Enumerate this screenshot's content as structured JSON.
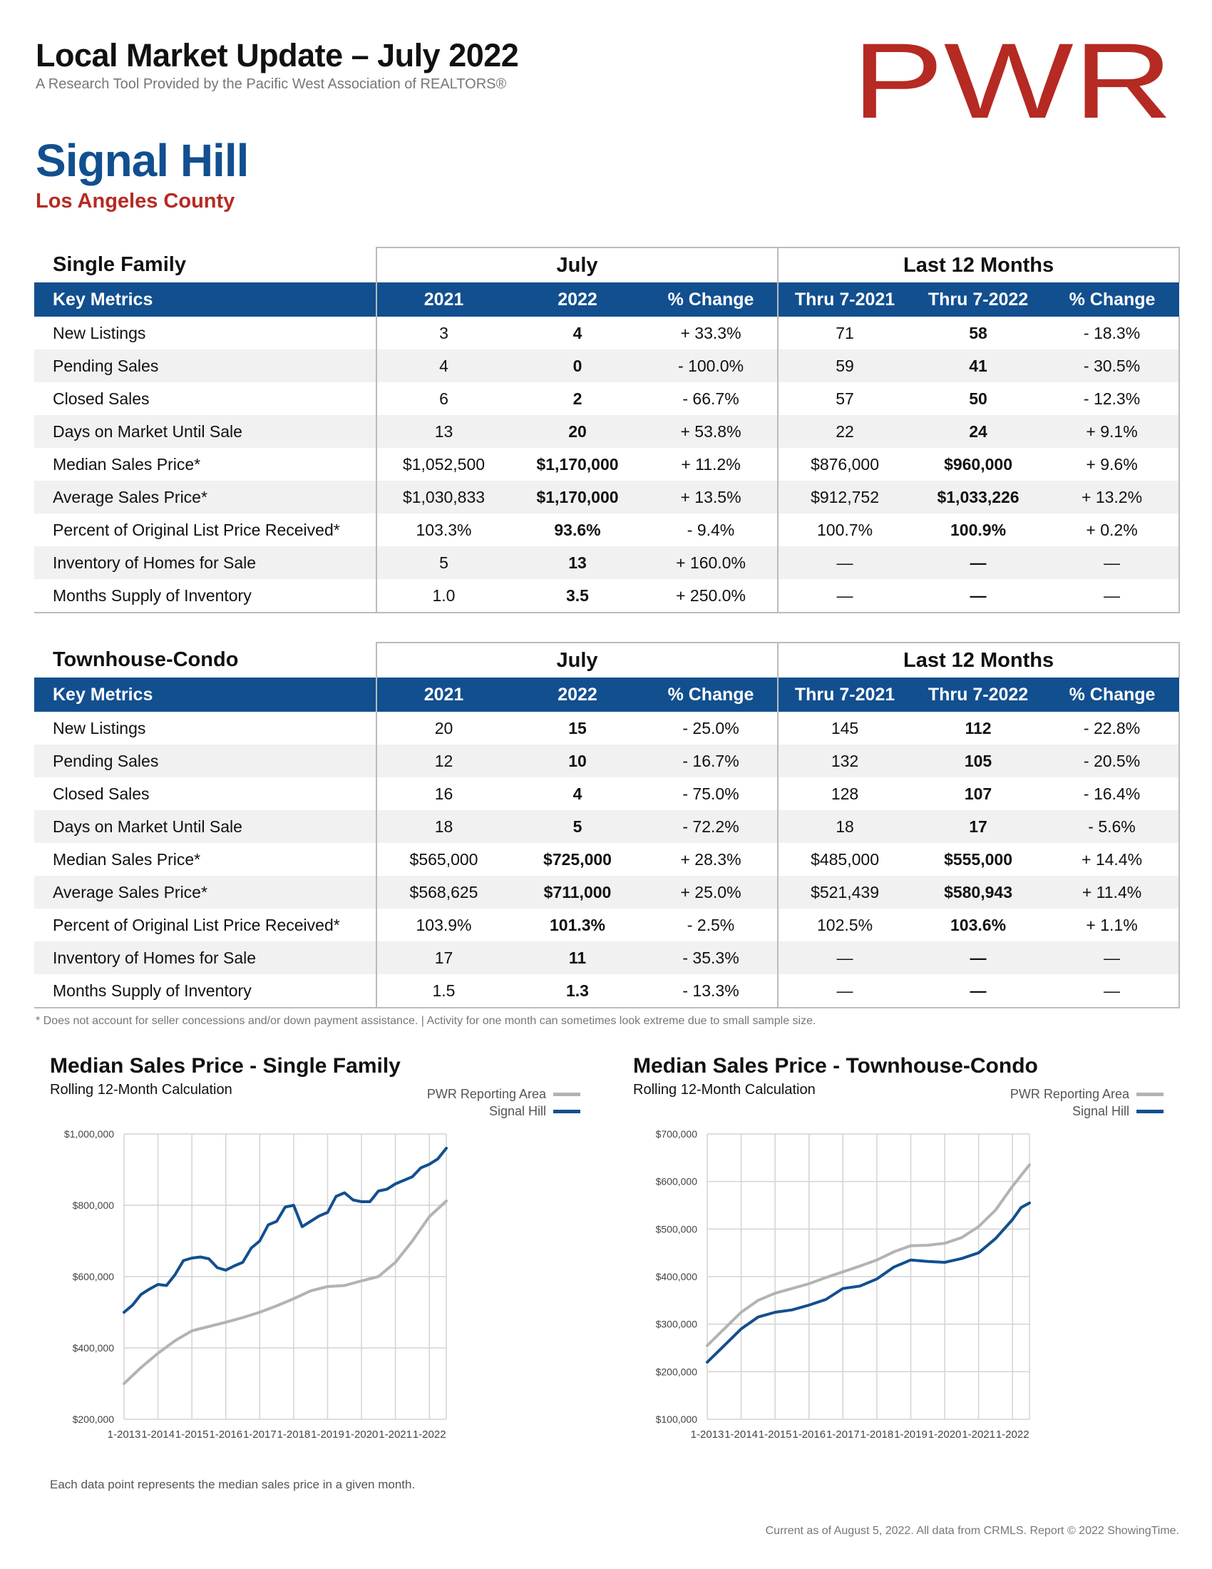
{
  "header": {
    "title": "Local Market Update – July 2022",
    "subtitle": "A Research Tool Provided by the Pacific West Association of REALTORS®",
    "logo_text": "PWR",
    "area": "Signal Hill",
    "county": "Los Angeles County"
  },
  "columns": {
    "key_metrics": "Key Metrics",
    "month_group": "July",
    "ytd_group": "Last 12 Months",
    "y1": "2021",
    "y2": "2022",
    "change": "% Change",
    "t1": "Thru 7-2021",
    "t2": "Thru 7-2022"
  },
  "tables": [
    {
      "name": "Single Family",
      "rows": [
        [
          "New Listings",
          "3",
          "4",
          "+ 33.3%",
          "71",
          "58",
          "- 18.3%"
        ],
        [
          "Pending Sales",
          "4",
          "0",
          "- 100.0%",
          "59",
          "41",
          "- 30.5%"
        ],
        [
          "Closed Sales",
          "6",
          "2",
          "- 66.7%",
          "57",
          "50",
          "- 12.3%"
        ],
        [
          "Days on Market Until Sale",
          "13",
          "20",
          "+ 53.8%",
          "22",
          "24",
          "+ 9.1%"
        ],
        [
          "Median Sales Price*",
          "$1,052,500",
          "$1,170,000",
          "+ 11.2%",
          "$876,000",
          "$960,000",
          "+ 9.6%"
        ],
        [
          "Average Sales Price*",
          "$1,030,833",
          "$1,170,000",
          "+ 13.5%",
          "$912,752",
          "$1,033,226",
          "+ 13.2%"
        ],
        [
          "Percent of Original List Price Received*",
          "103.3%",
          "93.6%",
          "- 9.4%",
          "100.7%",
          "100.9%",
          "+ 0.2%"
        ],
        [
          "Inventory of Homes for Sale",
          "5",
          "13",
          "+ 160.0%",
          "—",
          "—",
          "—"
        ],
        [
          "Months Supply of Inventory",
          "1.0",
          "3.5",
          "+ 250.0%",
          "—",
          "—",
          "—"
        ]
      ]
    },
    {
      "name": "Townhouse-Condo",
      "rows": [
        [
          "New Listings",
          "20",
          "15",
          "- 25.0%",
          "145",
          "112",
          "- 22.8%"
        ],
        [
          "Pending Sales",
          "12",
          "10",
          "- 16.7%",
          "132",
          "105",
          "- 20.5%"
        ],
        [
          "Closed Sales",
          "16",
          "4",
          "- 75.0%",
          "128",
          "107",
          "- 16.4%"
        ],
        [
          "Days on Market Until Sale",
          "18",
          "5",
          "- 72.2%",
          "18",
          "17",
          "- 5.6%"
        ],
        [
          "Median Sales Price*",
          "$565,000",
          "$725,000",
          "+ 28.3%",
          "$485,000",
          "$555,000",
          "+ 14.4%"
        ],
        [
          "Average Sales Price*",
          "$568,625",
          "$711,000",
          "+ 25.0%",
          "$521,439",
          "$580,943",
          "+ 11.4%"
        ],
        [
          "Percent of Original List Price Received*",
          "103.9%",
          "101.3%",
          "- 2.5%",
          "102.5%",
          "103.6%",
          "+ 1.1%"
        ],
        [
          "Inventory of Homes for Sale",
          "17",
          "11",
          "- 35.3%",
          "—",
          "—",
          "—"
        ],
        [
          "Months Supply of Inventory",
          "1.5",
          "1.3",
          "- 13.3%",
          "—",
          "—",
          "—"
        ]
      ]
    }
  ],
  "footnote": "* Does not account for seller concessions and/or down payment assistance. | Activity for one month can sometimes look extreme due to small sample size.",
  "chart_note": "Each data point represents the median sales price in a given month.",
  "footer": "Current as of August 5, 2022. All data from CRMLS. Report © 2022 ShowingTime.",
  "colors": {
    "brand_blue": "#124f8f",
    "brand_red": "#b52a22",
    "reporting_area_gray": "#b3b3b3"
  },
  "chart_data": [
    {
      "type": "line",
      "title": "Median Sales Price - Single Family",
      "subtitle": "Rolling 12-Month Calculation",
      "xlabel": "",
      "ylabel": "",
      "x_ticks": [
        "1-2013",
        "1-2014",
        "1-2015",
        "1-2016",
        "1-2017",
        "1-2018",
        "1-2019",
        "1-2020",
        "1-2021",
        "1-2022"
      ],
      "y_ticks": [
        "$1,000,000",
        "$800,000",
        "$600,000",
        "$400,000",
        "$200,000"
      ],
      "ylim": [
        200000,
        1000000
      ],
      "x_range": [
        "1-2013",
        "7-2022"
      ],
      "grid": true,
      "legend_position": "top-right",
      "series": [
        {
          "name": "PWR Reporting Area",
          "color": "#b3b3b3",
          "points": [
            [
              "1-2013",
              300000
            ],
            [
              "7-2013",
              345000
            ],
            [
              "1-2014",
              385000
            ],
            [
              "7-2014",
              420000
            ],
            [
              "1-2015",
              448000
            ],
            [
              "7-2015",
              460000
            ],
            [
              "1-2016",
              472000
            ],
            [
              "7-2016",
              485000
            ],
            [
              "1-2017",
              500000
            ],
            [
              "7-2017",
              518000
            ],
            [
              "1-2018",
              538000
            ],
            [
              "7-2018",
              560000
            ],
            [
              "1-2019",
              572000
            ],
            [
              "7-2019",
              575000
            ],
            [
              "1-2020",
              588000
            ],
            [
              "7-2020",
              600000
            ],
            [
              "1-2021",
              640000
            ],
            [
              "7-2021",
              700000
            ],
            [
              "1-2022",
              768000
            ],
            [
              "7-2022",
              812000
            ]
          ]
        },
        {
          "name": "Signal Hill",
          "color": "#124f8f",
          "points": [
            [
              "1-2013",
              500000
            ],
            [
              "4-2013",
              520000
            ],
            [
              "7-2013",
              550000
            ],
            [
              "10-2013",
              565000
            ],
            [
              "1-2014",
              578000
            ],
            [
              "4-2014",
              575000
            ],
            [
              "7-2014",
              605000
            ],
            [
              "10-2014",
              645000
            ],
            [
              "1-2015",
              652000
            ],
            [
              "4-2015",
              655000
            ],
            [
              "7-2015",
              650000
            ],
            [
              "10-2015",
              625000
            ],
            [
              "1-2016",
              618000
            ],
            [
              "4-2016",
              630000
            ],
            [
              "7-2016",
              640000
            ],
            [
              "10-2016",
              680000
            ],
            [
              "1-2017",
              700000
            ],
            [
              "4-2017",
              745000
            ],
            [
              "7-2017",
              755000
            ],
            [
              "10-2017",
              795000
            ],
            [
              "1-2018",
              800000
            ],
            [
              "4-2018",
              740000
            ],
            [
              "7-2018",
              755000
            ],
            [
              "10-2018",
              770000
            ],
            [
              "1-2019",
              780000
            ],
            [
              "4-2019",
              825000
            ],
            [
              "7-2019",
              835000
            ],
            [
              "10-2019",
              815000
            ],
            [
              "1-2020",
              810000
            ],
            [
              "4-2020",
              810000
            ],
            [
              "7-2020",
              840000
            ],
            [
              "10-2020",
              845000
            ],
            [
              "1-2021",
              860000
            ],
            [
              "4-2021",
              870000
            ],
            [
              "7-2021",
              880000
            ],
            [
              "10-2021",
              905000
            ],
            [
              "1-2022",
              915000
            ],
            [
              "4-2022",
              930000
            ],
            [
              "7-2022",
              960000
            ]
          ]
        }
      ]
    },
    {
      "type": "line",
      "title": "Median Sales Price - Townhouse-Condo",
      "subtitle": "Rolling 12-Month Calculation",
      "xlabel": "",
      "ylabel": "",
      "x_ticks": [
        "1-2013",
        "1-2014",
        "1-2015",
        "1-2016",
        "1-2017",
        "1-2018",
        "1-2019",
        "1-2020",
        "1-2021",
        "1-2022"
      ],
      "y_ticks": [
        "$700,000",
        "$600,000",
        "$500,000",
        "$400,000",
        "$300,000",
        "$200,000",
        "$100,000"
      ],
      "ylim": [
        100000,
        700000
      ],
      "x_range": [
        "1-2013",
        "7-2022"
      ],
      "grid": true,
      "legend_position": "top-right",
      "series": [
        {
          "name": "PWR Reporting Area",
          "color": "#b3b3b3",
          "points": [
            [
              "1-2013",
              255000
            ],
            [
              "7-2013",
              290000
            ],
            [
              "1-2014",
              325000
            ],
            [
              "7-2014",
              350000
            ],
            [
              "1-2015",
              365000
            ],
            [
              "7-2015",
              375000
            ],
            [
              "1-2016",
              385000
            ],
            [
              "7-2016",
              398000
            ],
            [
              "1-2017",
              410000
            ],
            [
              "7-2017",
              422000
            ],
            [
              "1-2018",
              435000
            ],
            [
              "7-2018",
              452000
            ],
            [
              "1-2019",
              465000
            ],
            [
              "7-2019",
              466000
            ],
            [
              "1-2020",
              470000
            ],
            [
              "7-2020",
              482000
            ],
            [
              "1-2021",
              505000
            ],
            [
              "7-2021",
              540000
            ],
            [
              "1-2022",
              590000
            ],
            [
              "7-2022",
              635000
            ]
          ]
        },
        {
          "name": "Signal Hill",
          "color": "#124f8f",
          "points": [
            [
              "1-2013",
              220000
            ],
            [
              "7-2013",
              255000
            ],
            [
              "1-2014",
              290000
            ],
            [
              "7-2014",
              315000
            ],
            [
              "1-2015",
              325000
            ],
            [
              "7-2015",
              330000
            ],
            [
              "1-2016",
              340000
            ],
            [
              "7-2016",
              352000
            ],
            [
              "1-2017",
              375000
            ],
            [
              "7-2017",
              380000
            ],
            [
              "1-2018",
              395000
            ],
            [
              "7-2018",
              420000
            ],
            [
              "1-2019",
              435000
            ],
            [
              "7-2019",
              432000
            ],
            [
              "1-2020",
              430000
            ],
            [
              "7-2020",
              438000
            ],
            [
              "1-2021",
              450000
            ],
            [
              "7-2021",
              480000
            ],
            [
              "1-2022",
              520000
            ],
            [
              "4-2022",
              545000
            ],
            [
              "7-2022",
              555000
            ]
          ]
        }
      ]
    }
  ]
}
